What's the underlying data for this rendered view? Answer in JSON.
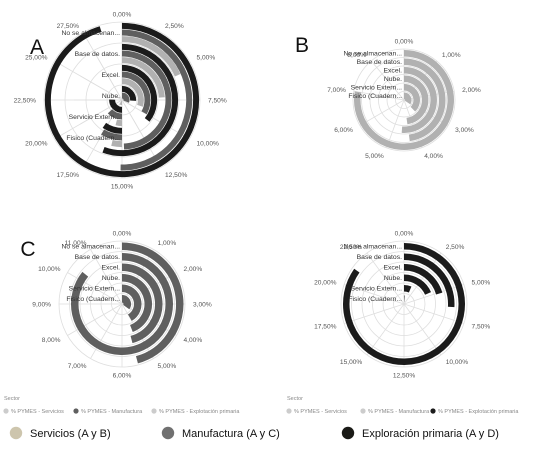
{
  "colors": {
    "servicios": "#b1b1b1",
    "manufactura": "#5f5f5f",
    "exploracion": "#1b1b1b",
    "grid": "#dedede",
    "key_servicios": "#cdc5ad",
    "key_manufactura": "#707070",
    "key_exploracion": "#1a1a16",
    "legend_dim": "#cccccc"
  },
  "chart_data": [
    {
      "type": "radial-bar",
      "panel_label": "A",
      "categories": [
        "No se almacenan...",
        "Base de datos.",
        "Excel.",
        "Nube.",
        "Servicio Extern...",
        "Fisico (Cuadern..."
      ],
      "max": 30,
      "ticks": [
        "0,00%",
        "2,50%",
        "5,00%",
        "7,50%",
        "10,00%",
        "12,50%",
        "15,00%",
        "17,50%",
        "20,00%",
        "22,50%",
        "25,00%",
        "27,50%"
      ],
      "series": [
        {
          "name": "% PYMES - Servicios",
          "color_key": "servicios",
          "values": [
            5.5,
            7.2,
            9.0,
            2.3,
            1.2,
            1.1
          ]
        },
        {
          "name": "% PYMES - Manufactura",
          "color_key": "manufactura",
          "values": [
            15.1,
            14.8,
            10.0,
            9.3,
            3.9,
            2.6
          ]
        },
        {
          "name": "% PYMES - Exploración primaria",
          "color_key": "exploracion",
          "values": [
            28.6,
            16.7,
            10.7,
            7.8,
            7.7,
            2.9
          ]
        }
      ]
    },
    {
      "type": "radial-bar",
      "panel_label": "B",
      "categories": [
        "No se almacenan...",
        "Base de datos.",
        "Excel.",
        "Nube.",
        "Servicio Extern...",
        "Fisico (Cuadern..."
      ],
      "max": 9,
      "ticks": [
        "0,00%",
        "1,00%",
        "2,00%",
        "3,00%",
        "4,00%",
        "5,00%",
        "6,00%",
        "7,00%",
        "8,00%"
      ],
      "series": [
        {
          "name": "% PYMES - Servicios",
          "color_key": "servicios",
          "values": [
            7.0,
            4.3,
            4.6,
            4.3,
            3.4,
            3.1
          ]
        }
      ]
    },
    {
      "type": "radial-bar",
      "panel_label": "C",
      "categories": [
        "No se almacenan...",
        "Base de datos.",
        "Excel.",
        "Nube.",
        "Servicio Extern...",
        "Fisico (Cuadern..."
      ],
      "max": 12,
      "ticks": [
        "0,00%",
        "1,00%",
        "2,00%",
        "3,00%",
        "4,00%",
        "5,00%",
        "6,00%",
        "7,00%",
        "8,00%",
        "9,00%",
        "10,00%",
        "11,00%"
      ],
      "series": [
        {
          "name": "% PYMES - Manufactura",
          "color_key": "manufactura",
          "values": [
            5.5,
            10.3,
            5.5,
            5.3,
            5.0,
            4.2
          ]
        }
      ]
    },
    {
      "type": "radial-bar",
      "panel_label": "",
      "categories": [
        "No se almacenan...",
        "Base de datos.",
        "Excel.",
        "Nube.",
        "Servicio Extern...",
        "Fisico (Cuadern..."
      ],
      "max": 25,
      "ticks": [
        "0,00%",
        "2,50%",
        "5,00%",
        "7,50%",
        "10,00%",
        "12,50%",
        "15,00%",
        "17,50%",
        "20,00%",
        "22,50%"
      ],
      "series": [
        {
          "name": "% PYMES - Explotación primaria",
          "color_key": "exploracion",
          "values": [
            21.2,
            6.5,
            5.1,
            4.6,
            1.6,
            0.3
          ]
        }
      ]
    }
  ],
  "legends": {
    "left": {
      "title": "Sector",
      "items": [
        {
          "label": "% PYMES - Servicios",
          "color_key": "legend_dim",
          "text_dim": true
        },
        {
          "label": "% PYMES - Manufactura",
          "color_key": "manufactura",
          "text_dim": false
        },
        {
          "label": "% PYMES - Explotación primaria",
          "color_key": "legend_dim",
          "text_dim": true
        }
      ]
    },
    "right": {
      "title": "Sector",
      "items": [
        {
          "label": "% PYMES - Servicios",
          "color_key": "legend_dim",
          "text_dim": true
        },
        {
          "label": "% PYMES - Manufactura",
          "color_key": "legend_dim",
          "text_dim": true
        },
        {
          "label": "% PYMES - Explotación primaria",
          "color_key": "exploracion",
          "text_dim": false
        }
      ]
    }
  },
  "key": [
    {
      "label": "Servicios (A y B)",
      "color_key": "key_servicios"
    },
    {
      "label": "Manufactura (A y C)",
      "color_key": "key_manufactura"
    },
    {
      "label": "Exploración primaria (A y D)",
      "color_key": "key_exploracion"
    }
  ]
}
